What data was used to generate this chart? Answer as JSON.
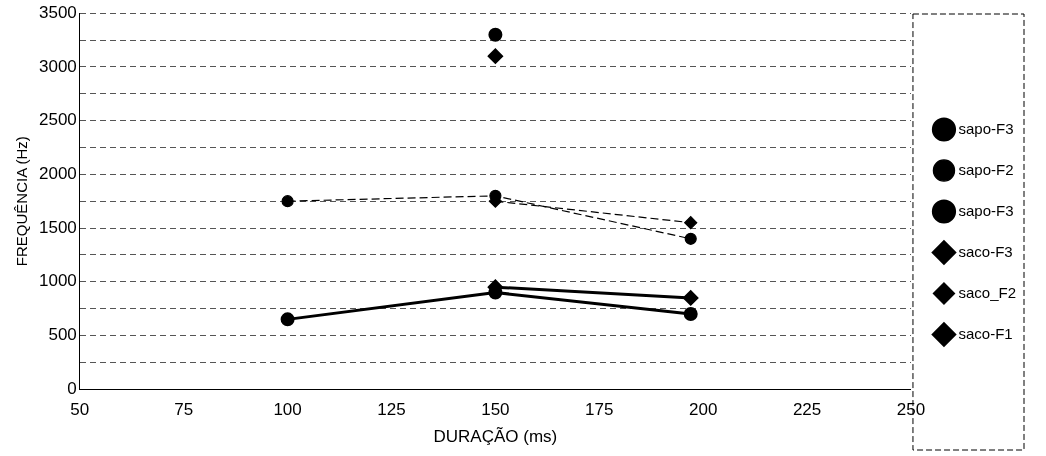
{
  "chart_data": {
    "type": "line",
    "xlabel": "DURAÇÃO (ms)",
    "ylabel": "FREQUÊNCIA (Hz)",
    "xlim": [
      50,
      250
    ],
    "xticks": [
      50,
      75,
      100,
      125,
      150,
      175,
      200,
      225,
      250
    ],
    "ylim": [
      0,
      3500
    ],
    "yticks": [
      0,
      {
        "value": 250,
        "label": null
      },
      500,
      {
        "value": 750,
        "label": null
      },
      1000,
      {
        "value": 1250,
        "label": null
      },
      1500,
      {
        "value": 1750,
        "label": null
      },
      2000,
      {
        "value": 2250,
        "label": null
      },
      2500,
      {
        "value": 2750,
        "label": null
      },
      3000,
      {
        "value": 3250,
        "label": null
      },
      3500
    ],
    "grid": "y",
    "legend": "right",
    "series": [
      {
        "name": "sapo-F3",
        "type": "scatter",
        "marker": "circle",
        "color": "#000000",
        "x": [
          150
        ],
        "values": [
          3300
        ]
      },
      {
        "name": "sapo-F2",
        "marker": "circle",
        "line_style": "dashed",
        "color": "#000000",
        "x": [
          100,
          150,
          197
        ],
        "values": [
          1750,
          1800,
          1400
        ]
      },
      {
        "name": "sapo-F3",
        "marker": "circle",
        "line_style": "solid",
        "color": "#000000",
        "x": [
          100,
          150,
          197
        ],
        "values": [
          650,
          900,
          700
        ]
      },
      {
        "name": "saco-F3",
        "type": "scatter",
        "marker": "diamond",
        "color": "#000000",
        "x": [
          150
        ],
        "values": [
          3100
        ]
      },
      {
        "name": "saco_F2",
        "marker": "diamond",
        "line_style": "dashed",
        "color": "#000000",
        "x": [
          150,
          197
        ],
        "values": [
          1750,
          1550
        ]
      },
      {
        "name": "saco-F1",
        "marker": "diamond",
        "line_style": "solid",
        "color": "#000000",
        "x": [
          150,
          197
        ],
        "values": [
          950,
          850
        ]
      }
    ]
  }
}
